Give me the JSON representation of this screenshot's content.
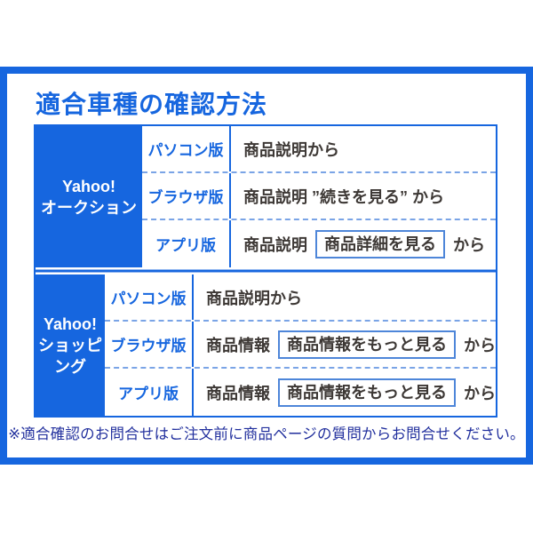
{
  "title": "適合車種の確認方法",
  "footer_note": "※適合確認のお問合せはご注文前に商品ページの質問からお問合せください。",
  "colors": {
    "primary_blue": "#1666df",
    "box_border_blue": "#4e86d9",
    "dashed_blue": "#7aa4e6",
    "text_dark": "#3d3835",
    "footer_navy": "#212f9d"
  },
  "table": {
    "sections": [
      {
        "service_line1": "Yahoo!",
        "service_line2": "オークション",
        "rows": [
          {
            "platform": "パソコン版",
            "text": "商品説明から"
          },
          {
            "platform": "ブラウザ版",
            "text": "商品説明 ”続きを見る” から"
          },
          {
            "platform": "アプリ版",
            "text_before": "商品説明",
            "button_label": "商品詳細を見る",
            "text_after": "から"
          }
        ]
      },
      {
        "service_line1": "Yahoo!",
        "service_line2": "ショッピング",
        "rows": [
          {
            "platform": "パソコン版",
            "text": "商品説明から"
          },
          {
            "platform": "ブラウザ版",
            "text_before": "商品情報",
            "button_label": "商品情報をもっと見る",
            "text_after": "から"
          },
          {
            "platform": "アプリ版",
            "text_before": "商品情報",
            "button_label": "商品情報をもっと見る",
            "text_after": "から"
          }
        ]
      }
    ]
  }
}
